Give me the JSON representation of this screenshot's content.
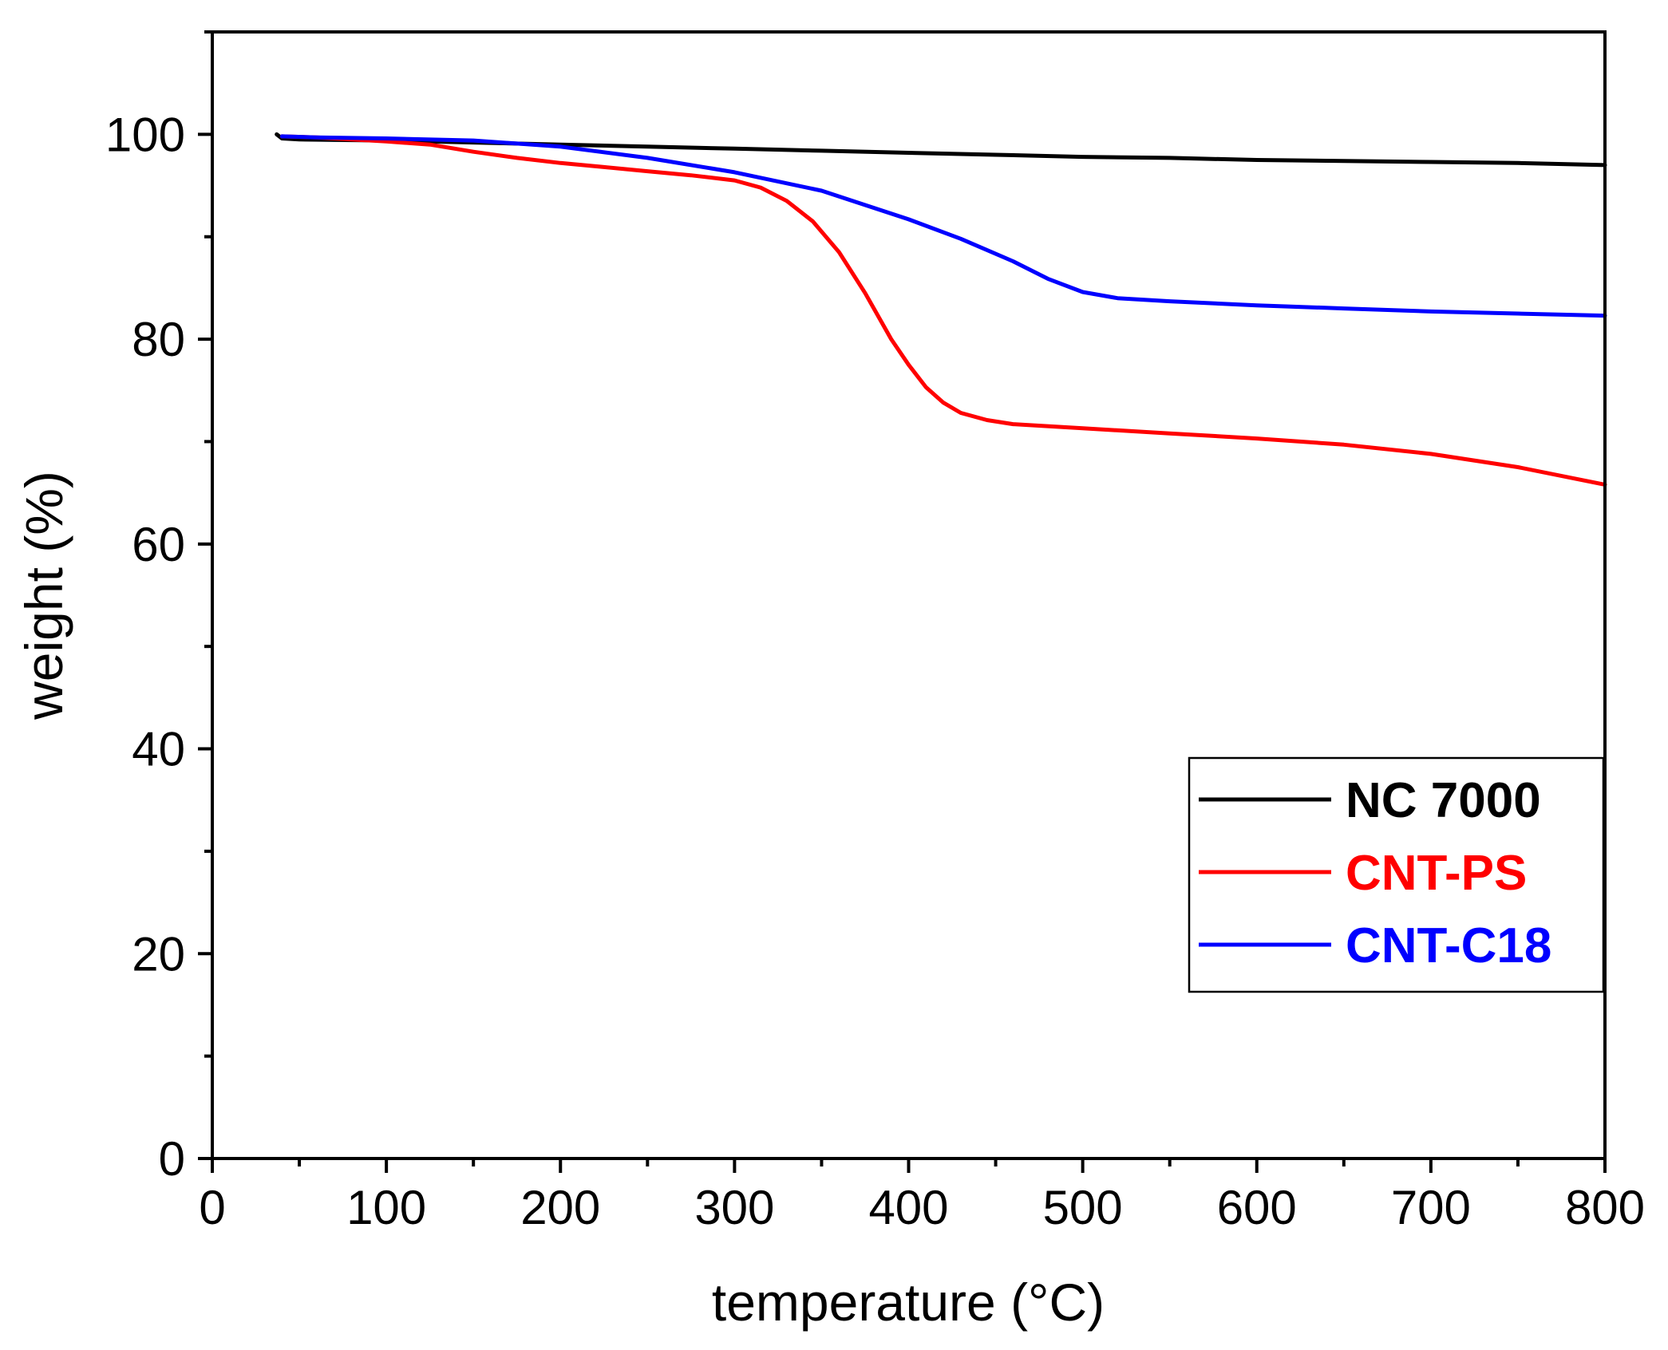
{
  "chart_data": {
    "type": "line",
    "title": "",
    "xlabel": "temperature (°C)",
    "ylabel": "weight (%)",
    "xlim": [
      0,
      800
    ],
    "ylim": [
      0,
      110
    ],
    "grid": false,
    "legend_position": "bottom-right",
    "x_ticks": [
      0,
      100,
      200,
      300,
      400,
      500,
      600,
      700,
      800
    ],
    "y_ticks": [
      0,
      20,
      40,
      60,
      80,
      100
    ],
    "series": [
      {
        "name": "NC 7000",
        "color": "#000000",
        "x": [
          37,
          40,
          50,
          100,
          150,
          200,
          250,
          300,
          350,
          400,
          450,
          500,
          550,
          600,
          650,
          700,
          750,
          800
        ],
        "y": [
          100,
          99.6,
          99.5,
          99.4,
          99.2,
          99.0,
          98.8,
          98.6,
          98.4,
          98.2,
          98.0,
          97.8,
          97.7,
          97.5,
          97.4,
          97.3,
          97.2,
          97.0
        ]
      },
      {
        "name": "CNT-PS",
        "color": "#ff0000",
        "x": [
          40,
          60,
          80,
          100,
          125,
          150,
          175,
          200,
          225,
          250,
          275,
          300,
          315,
          330,
          345,
          360,
          375,
          390,
          400,
          410,
          420,
          430,
          445,
          460,
          500,
          550,
          600,
          650,
          700,
          750,
          800
        ],
        "y": [
          99.8,
          99.7,
          99.5,
          99.3,
          99.0,
          98.3,
          97.7,
          97.2,
          96.8,
          96.4,
          96.0,
          95.5,
          94.8,
          93.5,
          91.5,
          88.5,
          84.5,
          80.0,
          77.5,
          75.3,
          73.8,
          72.8,
          72.1,
          71.7,
          71.3,
          70.8,
          70.3,
          69.7,
          68.8,
          67.5,
          65.8
        ]
      },
      {
        "name": "CNT-C18",
        "color": "#0000ff",
        "x": [
          40,
          60,
          100,
          150,
          200,
          250,
          300,
          350,
          400,
          430,
          460,
          480,
          500,
          520,
          550,
          600,
          650,
          700,
          750,
          800
        ],
        "y": [
          99.8,
          99.7,
          99.6,
          99.4,
          98.8,
          97.7,
          96.3,
          94.5,
          91.7,
          89.8,
          87.6,
          85.9,
          84.6,
          84.0,
          83.7,
          83.3,
          83.0,
          82.7,
          82.5,
          82.3
        ]
      }
    ]
  }
}
